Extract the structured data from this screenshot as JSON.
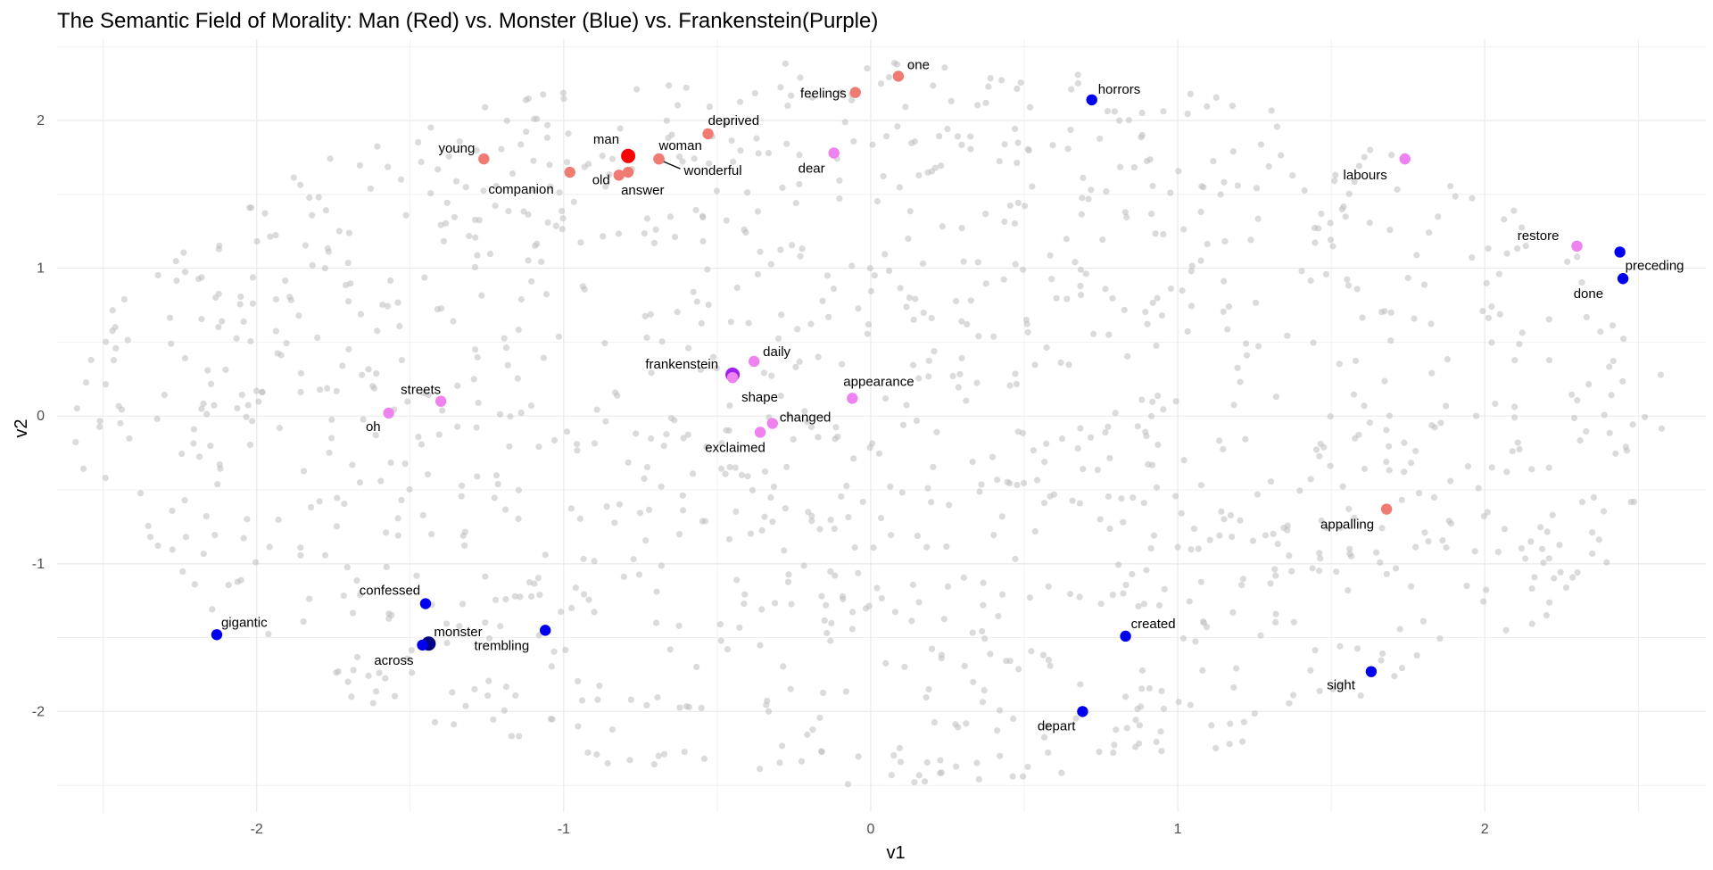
{
  "chart_data": {
    "type": "scatter",
    "title": "The Semantic Field of Morality: Man (Red) vs. Monster (Blue) vs. Frankenstein(Purple)",
    "xlabel": "v1",
    "ylabel": "v2",
    "xlim": [
      -2.65,
      2.72
    ],
    "ylim": [
      -2.68,
      2.55
    ],
    "xticks": [
      -2,
      -1,
      0,
      1,
      2
    ],
    "yticks": [
      -2,
      -1,
      0,
      1,
      2
    ],
    "xtick_labels": [
      "-2",
      "-1",
      "0",
      "1",
      "2"
    ],
    "ytick_labels": [
      "-2",
      "-1",
      "0",
      "1",
      "2"
    ],
    "grid": true,
    "legend": "none",
    "colors": {
      "background_points": "#bdbdbd",
      "man_group": "#ef7b72",
      "man_main": "#ff0000",
      "monster_group": "#0000ee",
      "monster_main": "#000080",
      "frankenstein_group": "#ee82ee",
      "frankenstein_main": "#a020f0",
      "grid": "#ebebeb"
    },
    "background": {
      "count": 1300,
      "x_range": [
        -2.6,
        2.6
      ],
      "y_range": [
        -2.5,
        2.4
      ]
    },
    "series": [
      {
        "group": "man",
        "points": [
          {
            "label": "man",
            "x": -0.79,
            "y": 1.76,
            "main": true
          },
          {
            "label": "woman",
            "x": -0.69,
            "y": 1.74
          },
          {
            "label": "wonderful",
            "x": -0.69,
            "y": 1.74
          },
          {
            "label": "old",
            "x": -0.82,
            "y": 1.63
          },
          {
            "label": "answer",
            "x": -0.79,
            "y": 1.65
          },
          {
            "label": "deprived",
            "x": -0.53,
            "y": 1.91
          },
          {
            "label": "young",
            "x": -1.26,
            "y": 1.74
          },
          {
            "label": "companion",
            "x": -0.98,
            "y": 1.65
          },
          {
            "label": "feelings",
            "x": -0.05,
            "y": 2.19
          },
          {
            "label": "one",
            "x": 0.09,
            "y": 2.3
          },
          {
            "label": "appalling",
            "x": 1.68,
            "y": -0.63
          }
        ]
      },
      {
        "group": "monster",
        "points": [
          {
            "label": "monster",
            "x": -1.44,
            "y": -1.54,
            "main": true
          },
          {
            "label": "across",
            "x": -1.46,
            "y": -1.55
          },
          {
            "label": "confessed",
            "x": -1.45,
            "y": -1.27
          },
          {
            "label": "gigantic",
            "x": -2.13,
            "y": -1.48
          },
          {
            "label": "trembling",
            "x": -1.06,
            "y": -1.45
          },
          {
            "label": "horrors",
            "x": 0.72,
            "y": 2.14
          },
          {
            "label": "preceding",
            "x": 2.44,
            "y": 1.11
          },
          {
            "label": "done",
            "x": 2.45,
            "y": 0.93
          },
          {
            "label": "created",
            "x": 0.83,
            "y": -1.49
          },
          {
            "label": "depart",
            "x": 0.69,
            "y": -2.0
          },
          {
            "label": "sight",
            "x": 1.63,
            "y": -1.73
          }
        ]
      },
      {
        "group": "frankenstein",
        "points": [
          {
            "label": "frankenstein",
            "x": -0.45,
            "y": 0.28,
            "main": true
          },
          {
            "label": "shape",
            "x": -0.45,
            "y": 0.26
          },
          {
            "label": "daily",
            "x": -0.38,
            "y": 0.37
          },
          {
            "label": "changed",
            "x": -0.32,
            "y": -0.05
          },
          {
            "label": "exclaimed",
            "x": -0.36,
            "y": -0.11
          },
          {
            "label": "appearance",
            "x": -0.06,
            "y": 0.12
          },
          {
            "label": "dear",
            "x": -0.12,
            "y": 1.78
          },
          {
            "label": "labours",
            "x": 1.74,
            "y": 1.74
          },
          {
            "label": "restore",
            "x": 2.3,
            "y": 1.15
          },
          {
            "label": "oh",
            "x": -1.57,
            "y": 0.02
          },
          {
            "label": "streets",
            "x": -1.4,
            "y": 0.1
          }
        ]
      }
    ]
  }
}
